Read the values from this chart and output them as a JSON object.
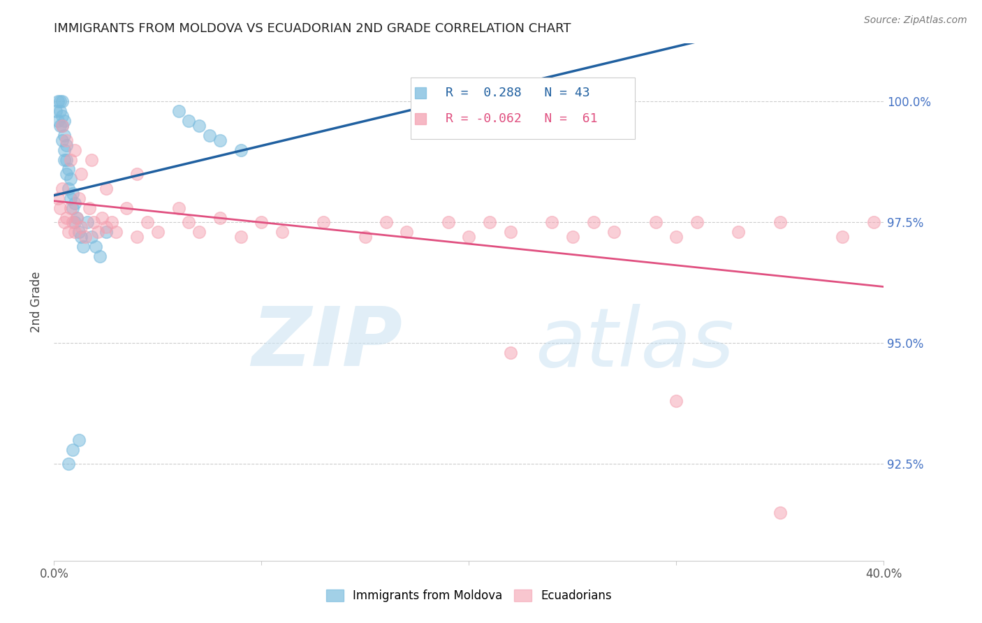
{
  "title": "IMMIGRANTS FROM MOLDOVA VS ECUADORIAN 2ND GRADE CORRELATION CHART",
  "source": "Source: ZipAtlas.com",
  "ylabel": "2nd Grade",
  "xmin": 0.0,
  "xmax": 0.4,
  "ymin": 90.5,
  "ymax": 101.2,
  "blue_R": 0.288,
  "blue_N": 43,
  "pink_R": -0.062,
  "pink_N": 61,
  "blue_color": "#7bbcde",
  "pink_color": "#f4a0b0",
  "blue_line_color": "#2060a0",
  "pink_line_color": "#e05080",
  "legend1": "Immigrants from Moldova",
  "legend2": "Ecuadorians",
  "blue_x": [
    0.001,
    0.002,
    0.002,
    0.003,
    0.003,
    0.003,
    0.004,
    0.004,
    0.004,
    0.004,
    0.005,
    0.005,
    0.005,
    0.005,
    0.006,
    0.006,
    0.006,
    0.007,
    0.007,
    0.008,
    0.008,
    0.009,
    0.009,
    0.01,
    0.01,
    0.011,
    0.012,
    0.013,
    0.014,
    0.016,
    0.018,
    0.02,
    0.022,
    0.025,
    0.06,
    0.065,
    0.07,
    0.075,
    0.08,
    0.09,
    0.007,
    0.009,
    0.012
  ],
  "blue_y": [
    99.8,
    99.6,
    100.0,
    99.5,
    99.8,
    100.0,
    99.2,
    99.5,
    99.7,
    100.0,
    98.8,
    99.0,
    99.3,
    99.6,
    98.5,
    98.8,
    99.1,
    98.2,
    98.6,
    98.0,
    98.4,
    97.8,
    98.1,
    97.5,
    97.9,
    97.6,
    97.3,
    97.2,
    97.0,
    97.5,
    97.2,
    97.0,
    96.8,
    97.3,
    99.8,
    99.6,
    99.5,
    99.3,
    99.2,
    99.0,
    92.5,
    92.8,
    93.0
  ],
  "pink_x": [
    0.002,
    0.003,
    0.004,
    0.005,
    0.006,
    0.007,
    0.008,
    0.009,
    0.01,
    0.011,
    0.012,
    0.013,
    0.015,
    0.017,
    0.019,
    0.021,
    0.023,
    0.025,
    0.028,
    0.03,
    0.035,
    0.04,
    0.045,
    0.05,
    0.06,
    0.065,
    0.07,
    0.08,
    0.09,
    0.1,
    0.11,
    0.13,
    0.15,
    0.16,
    0.17,
    0.19,
    0.2,
    0.21,
    0.22,
    0.24,
    0.25,
    0.26,
    0.27,
    0.29,
    0.3,
    0.31,
    0.33,
    0.35,
    0.38,
    0.395,
    0.004,
    0.006,
    0.008,
    0.01,
    0.013,
    0.018,
    0.025,
    0.04,
    0.22,
    0.3,
    0.35
  ],
  "pink_y": [
    98.0,
    97.8,
    98.2,
    97.5,
    97.6,
    97.3,
    97.8,
    97.5,
    97.3,
    97.6,
    98.0,
    97.4,
    97.2,
    97.8,
    97.5,
    97.3,
    97.6,
    97.4,
    97.5,
    97.3,
    97.8,
    97.2,
    97.5,
    97.3,
    97.8,
    97.5,
    97.3,
    97.6,
    97.2,
    97.5,
    97.3,
    97.5,
    97.2,
    97.5,
    97.3,
    97.5,
    97.2,
    97.5,
    97.3,
    97.5,
    97.2,
    97.5,
    97.3,
    97.5,
    97.2,
    97.5,
    97.3,
    97.5,
    97.2,
    97.5,
    99.5,
    99.2,
    98.8,
    99.0,
    98.5,
    98.8,
    98.2,
    98.5,
    94.8,
    93.8,
    91.5
  ]
}
